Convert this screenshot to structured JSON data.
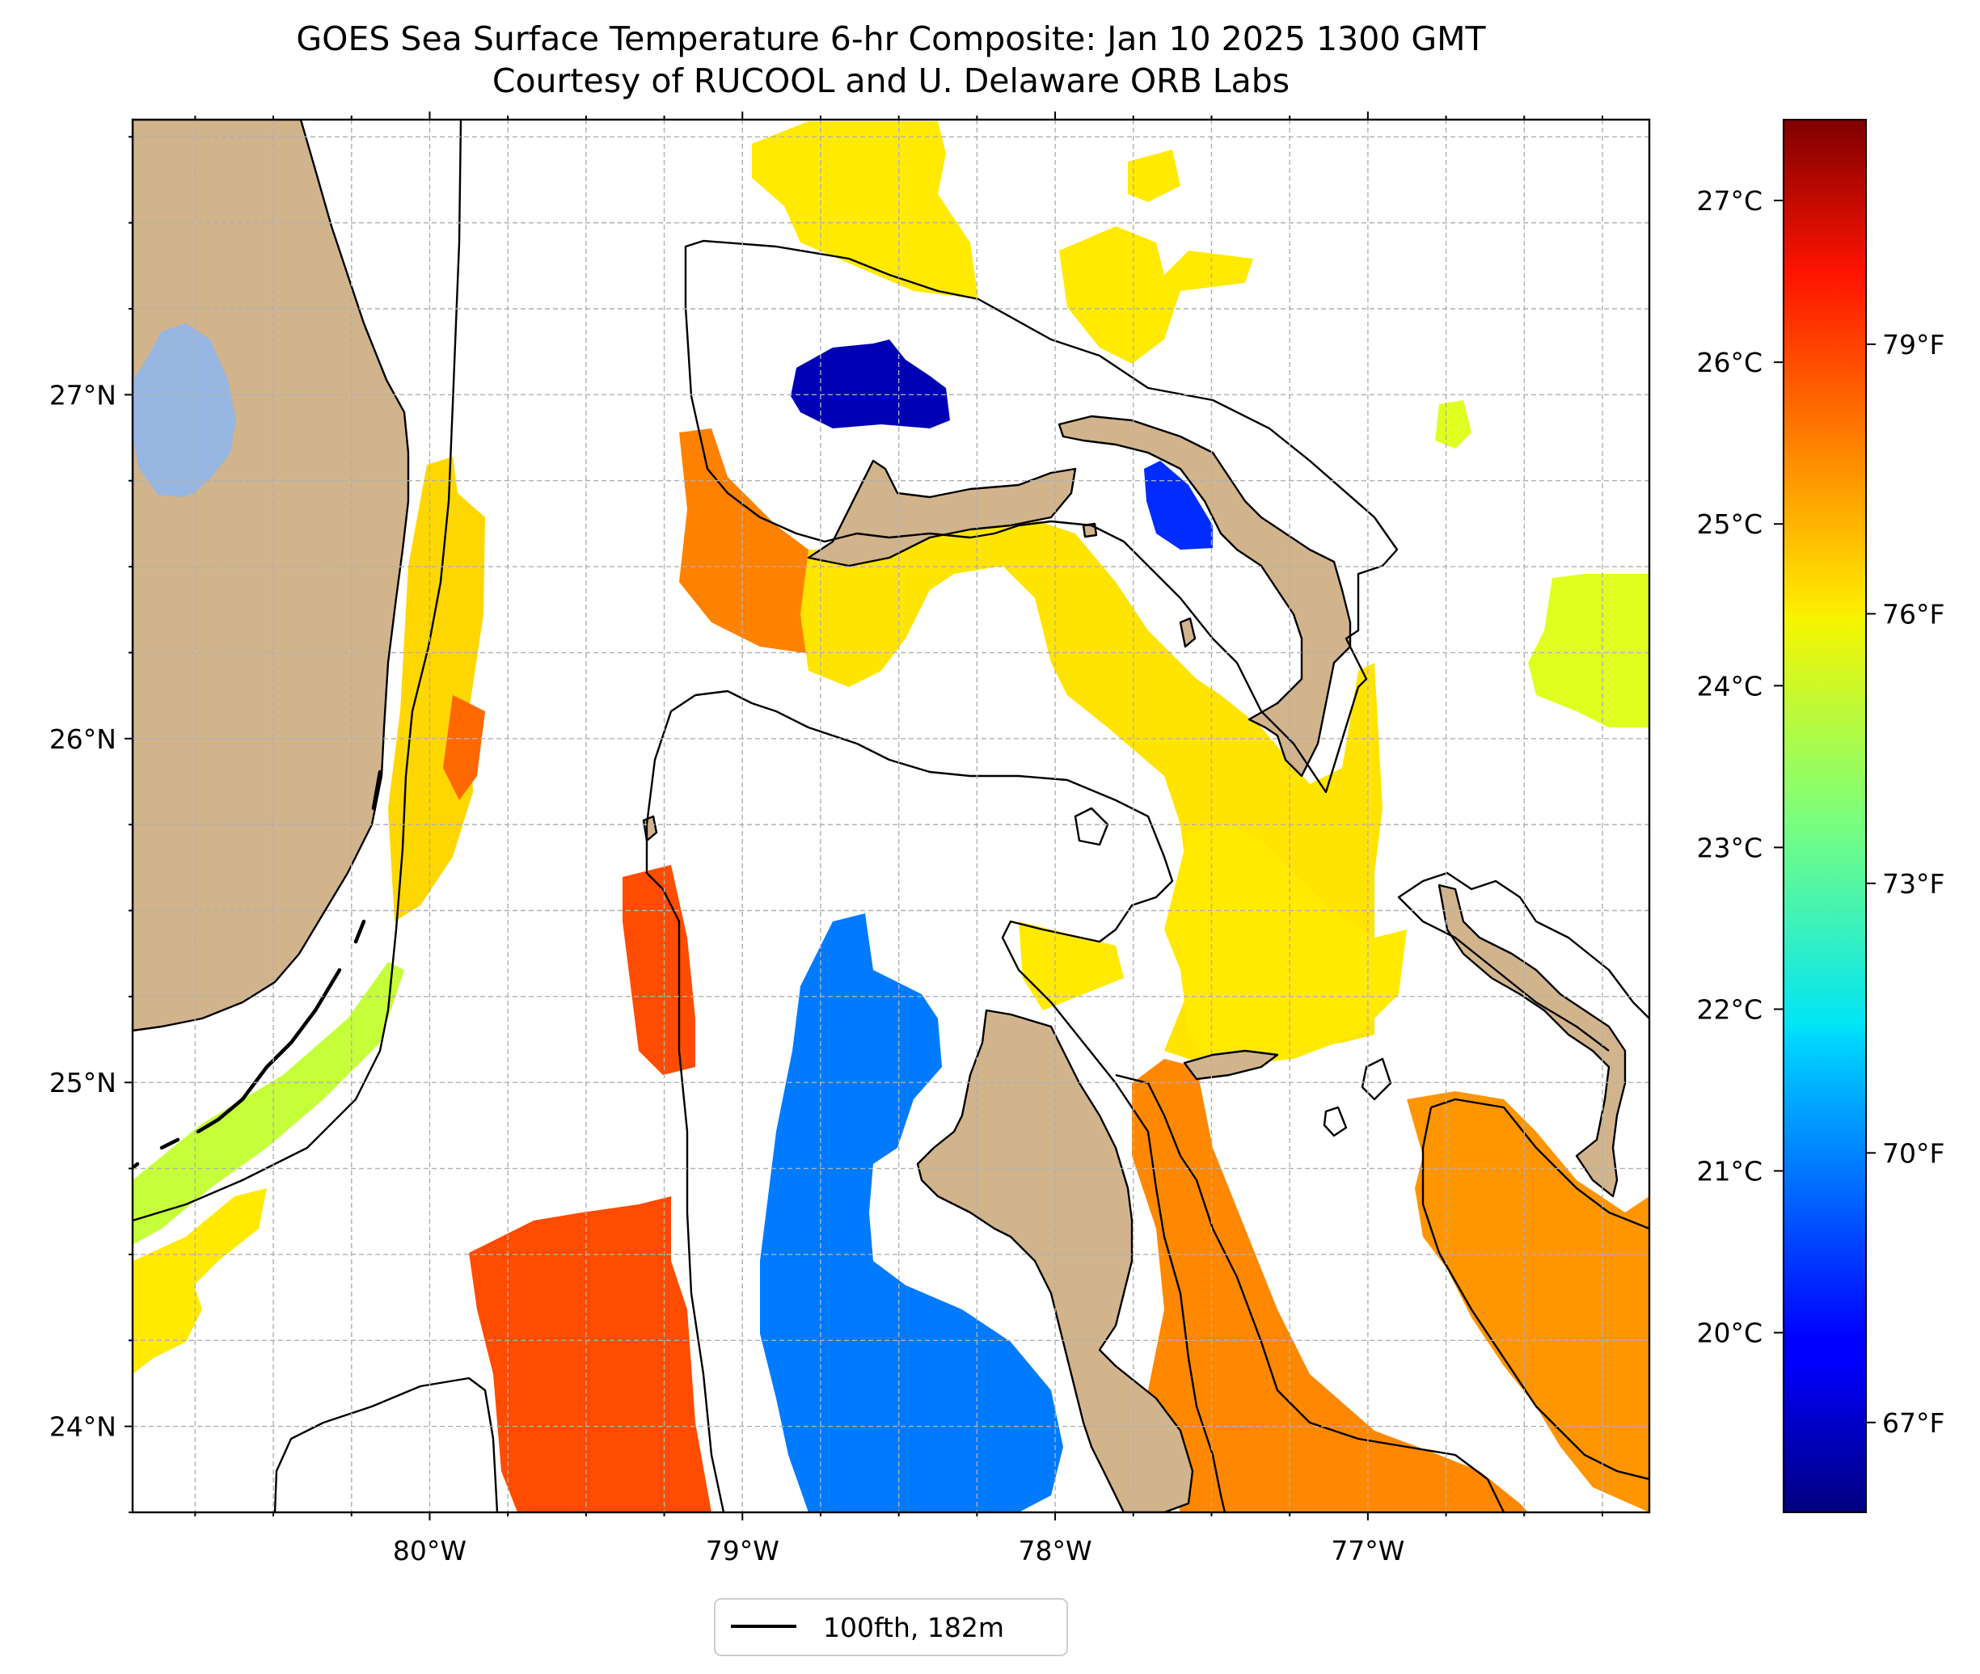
{
  "title": {
    "line1": "GOES Sea Surface Temperature 6-hr Composite: Jan 10 2025 1300 GMT",
    "line2": "Courtesy of RUCOOL and U. Delaware ORB Labs"
  },
  "map": {
    "lon_range": [
      -80.95,
      -76.1
    ],
    "lat_range": [
      23.75,
      27.8
    ],
    "lon_ticks": [
      {
        "value": -80,
        "label": "80°W"
      },
      {
        "value": -79,
        "label": "79°W"
      },
      {
        "value": -78,
        "label": "78°W"
      },
      {
        "value": -77,
        "label": "77°W"
      }
    ],
    "lat_ticks": [
      {
        "value": 27,
        "label": "27°N"
      },
      {
        "value": 26,
        "label": "26°N"
      },
      {
        "value": 25,
        "label": "25°N"
      },
      {
        "value": 24,
        "label": "24°N"
      }
    ],
    "gridlines": true,
    "colors": {
      "land": "#d2b48c",
      "lake": "#97b6e2",
      "coast": "#000000",
      "grid": "#b0b0b0"
    }
  },
  "legend": {
    "label": "100fth, 182m",
    "location": "bottom-center"
  },
  "colorbar": {
    "colormap": "jet",
    "fahrenheit_range": [
      66,
      81.5
    ],
    "celsius_ticks": [
      {
        "value": 27,
        "label": "27°C"
      },
      {
        "value": 26,
        "label": "26°C"
      },
      {
        "value": 25,
        "label": "25°C"
      },
      {
        "value": 24,
        "label": "24°C"
      },
      {
        "value": 23,
        "label": "23°C"
      },
      {
        "value": 22,
        "label": "22°C"
      },
      {
        "value": 21,
        "label": "21°C"
      },
      {
        "value": 20,
        "label": "20°C"
      }
    ],
    "fahrenheit_ticks": [
      {
        "value": 79,
        "label": "79°F"
      },
      {
        "value": 76,
        "label": "76°F"
      },
      {
        "value": 73,
        "label": "73°F"
      },
      {
        "value": 70,
        "label": "70°F"
      },
      {
        "value": 67,
        "label": "67°F"
      }
    ]
  },
  "sst_patches": [
    {
      "name": "sst-patch-gulfstream-strait",
      "temp_f": 76.3
    },
    {
      "name": "sst-patch-straits-orange",
      "temp_f": 78.0
    },
    {
      "name": "sst-patch-florida-bay-green",
      "temp_f": 74.8
    },
    {
      "name": "sst-patch-keys-yellow",
      "temp_f": 76.0
    },
    {
      "name": "sst-patch-north-yellow",
      "temp_f": 76.0
    },
    {
      "name": "sst-patch-northeast-yellow",
      "temp_f": 76.0
    },
    {
      "name": "sst-patch-bahama-bank-orange",
      "temp_f": 77.6
    },
    {
      "name": "sst-patch-bank-yellow-band",
      "temp_f": 76.1
    },
    {
      "name": "sst-patch-providence-yellow",
      "temp_f": 76.0
    },
    {
      "name": "sst-patch-cay-sal-orange",
      "temp_f": 78.4
    },
    {
      "name": "sst-patch-andros-east-orange",
      "temp_f": 77.5
    },
    {
      "name": "sst-patch-exuma-orange",
      "temp_f": 77.3
    },
    {
      "name": "sst-patch-east-lime",
      "temp_f": 75.2
    },
    {
      "name": "sst-patch-west-bank-dark-blue",
      "temp_f": 66.8
    },
    {
      "name": "sst-patch-abaco-sound-blue",
      "temp_f": 68.6
    },
    {
      "name": "sst-patch-great-bahama-bank-blue",
      "temp_f": 69.8
    }
  ]
}
